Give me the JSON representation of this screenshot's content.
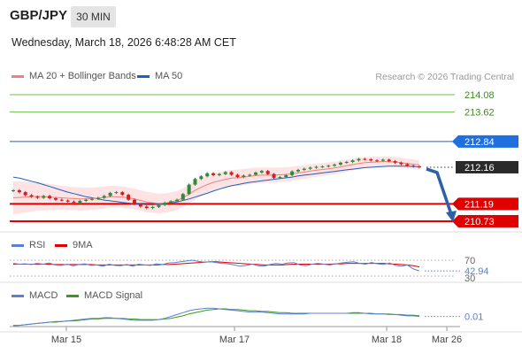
{
  "header": {
    "symbol": "GBP/JPY",
    "timeframe": "30 MIN",
    "datetime": "Wednesday, March 18, 2026 6:48:28 AM CET"
  },
  "legend": {
    "ma20_label": "MA 20 + Bollinger Bands",
    "ma50_label": "MA 50",
    "copyright": "Research © 2026 Trading Central",
    "rsi_label": "RSI",
    "rsi_ma_label": "9MA",
    "macd_label": "MACD",
    "macd_signal_label": "MACD Signal"
  },
  "colors": {
    "resistance": "#6abf4b",
    "pivot": "#1f5fbf",
    "support": "#e00000",
    "ma20": "#f08080",
    "ma50": "#1f5fbf",
    "bollinger_fill": "#fde3e3",
    "candle_up": "#2e8b3a",
    "candle_down": "#d21e1e",
    "arrow": "#2e60a8",
    "rsi": "#5b7fd6",
    "rsi_ma": "#e00000",
    "macd": "#5b7fd6",
    "macd_signal": "#3b9a1e"
  },
  "chart_data": [
    {
      "type": "line",
      "title": "GBP/JPY",
      "x_ticks": [
        "Mar 15",
        "Mar 17",
        "Mar 18",
        "Mar 26"
      ],
      "ylim": [
        210.73,
        214.08
      ],
      "levels": [
        {
          "value": 214.08,
          "label": "214.08",
          "kind": "resistance"
        },
        {
          "value": 213.62,
          "label": "213.62",
          "kind": "resistance"
        },
        {
          "value": 212.84,
          "label": "212.84",
          "kind": "pivot"
        },
        {
          "value": 212.16,
          "label": "212.16",
          "kind": "last"
        },
        {
          "value": 211.19,
          "label": "211.19",
          "kind": "support"
        },
        {
          "value": 210.73,
          "label": "210.73",
          "kind": "support"
        }
      ],
      "series": [
        {
          "name": "Price",
          "values": [
            211.55,
            211.5,
            211.42,
            211.38,
            211.35,
            211.4,
            211.34,
            211.3,
            211.28,
            211.25,
            211.22,
            211.27,
            211.3,
            211.32,
            211.35,
            211.4,
            211.48,
            211.5,
            211.43,
            211.3,
            211.18,
            211.12,
            211.08,
            211.11,
            211.16,
            211.22,
            211.26,
            211.3,
            211.45,
            211.7,
            211.85,
            211.92,
            212.0,
            211.95,
            211.98,
            212.03,
            211.96,
            211.9,
            211.94,
            211.96,
            212.02,
            212.06,
            211.98,
            211.88,
            211.9,
            211.95,
            212.05,
            212.09,
            212.12,
            212.15,
            212.17,
            212.18,
            212.2,
            212.23,
            212.28,
            212.3,
            212.34,
            212.38,
            212.37,
            212.34,
            212.33,
            212.36,
            212.32,
            212.28,
            212.24,
            212.2,
            212.18,
            212.16
          ]
        },
        {
          "name": "MA 20",
          "values": [
            211.35,
            211.36,
            211.37,
            211.38,
            211.39,
            211.38,
            211.37,
            211.36,
            211.35,
            211.34,
            211.33,
            211.32,
            211.32,
            211.33,
            211.34,
            211.36,
            211.38,
            211.38,
            211.37,
            211.35,
            211.32,
            211.28,
            211.24,
            211.22,
            211.2,
            211.21,
            211.24,
            211.28,
            211.35,
            211.45,
            211.55,
            211.63,
            211.7,
            211.76,
            211.8,
            211.84,
            211.87,
            211.88,
            211.9,
            211.92,
            211.94,
            211.95,
            211.95,
            211.95,
            211.96,
            211.97,
            211.99,
            212.01,
            212.03,
            212.06,
            212.08,
            212.1,
            212.12,
            212.14,
            212.17,
            212.2,
            212.23,
            212.26,
            212.28,
            212.29,
            212.3,
            212.31,
            212.31,
            212.3,
            212.28,
            212.26,
            212.24,
            212.22
          ]
        },
        {
          "name": "MA 50",
          "values": [
            211.9,
            211.87,
            211.83,
            211.79,
            211.75,
            211.7,
            211.65,
            211.6,
            211.55,
            211.5,
            211.46,
            211.42,
            211.38,
            211.35,
            211.32,
            211.29,
            211.27,
            211.25,
            211.23,
            211.21,
            211.19,
            211.18,
            211.17,
            211.17,
            211.18,
            211.2,
            211.22,
            211.24,
            211.28,
            211.32,
            211.37,
            211.42,
            211.47,
            211.53,
            211.58,
            211.63,
            211.67,
            211.7,
            211.73,
            211.76,
            211.78,
            211.8,
            211.82,
            211.84,
            211.86,
            211.88,
            211.9,
            211.93,
            211.95,
            211.97,
            211.99,
            212.01,
            212.03,
            212.05,
            212.07,
            212.09,
            212.11,
            212.13,
            212.15,
            212.16,
            212.17,
            212.18,
            212.19,
            212.19,
            212.19,
            212.19,
            212.18,
            212.17
          ]
        }
      ]
    },
    {
      "type": "line",
      "ylim": [
        30,
        70
      ],
      "y_ticks": [
        "70",
        "30"
      ],
      "last_value_label": "42.94",
      "series": [
        {
          "name": "RSI",
          "values": [
            62,
            60,
            61,
            59,
            62,
            60,
            63,
            58,
            57,
            60,
            56,
            59,
            61,
            57,
            58,
            55,
            60,
            57,
            56,
            59,
            55,
            60,
            58,
            57,
            61,
            59,
            63,
            64,
            66,
            68,
            70,
            67,
            65,
            66,
            64,
            62,
            61,
            58,
            55,
            57,
            60,
            56,
            55,
            59,
            62,
            60,
            63,
            64,
            58,
            56,
            60,
            62,
            60,
            58,
            61,
            63,
            65,
            66,
            62,
            60,
            64,
            61,
            59,
            63,
            57,
            55,
            58,
            48,
            43
          ]
        },
        {
          "name": "9MA",
          "values": [
            60,
            60,
            60,
            60,
            60,
            60,
            60,
            59,
            59,
            59,
            59,
            59,
            59,
            59,
            58,
            58,
            58,
            58,
            58,
            58,
            58,
            58,
            58,
            58,
            58,
            59,
            59,
            60,
            61,
            62,
            63,
            64,
            65,
            66,
            66,
            65,
            64,
            63,
            62,
            61,
            60,
            59,
            58,
            58,
            58,
            58,
            59,
            60,
            60,
            60,
            60,
            60,
            60,
            60,
            61,
            61,
            62,
            62,
            62,
            62,
            62,
            62,
            62,
            61,
            60,
            59,
            58,
            56,
            53
          ]
        }
      ]
    },
    {
      "type": "line",
      "ylim": [
        -0.15,
        0.2
      ],
      "last_value_label": "0.01",
      "series": [
        {
          "name": "MACD",
          "values": [
            -0.14,
            -0.13,
            -0.12,
            -0.11,
            -0.1,
            -0.09,
            -0.08,
            -0.07,
            -0.07,
            -0.06,
            -0.05,
            -0.04,
            -0.03,
            -0.02,
            -0.02,
            -0.01,
            -0.01,
            -0.02,
            -0.03,
            -0.04,
            -0.05,
            -0.05,
            -0.05,
            -0.05,
            -0.04,
            -0.02,
            0.01,
            0.04,
            0.07,
            0.1,
            0.12,
            0.13,
            0.14,
            0.14,
            0.13,
            0.12,
            0.11,
            0.1,
            0.09,
            0.08,
            0.08,
            0.08,
            0.07,
            0.06,
            0.05,
            0.05,
            0.05,
            0.05,
            0.05,
            0.06,
            0.06,
            0.06,
            0.06,
            0.06,
            0.06,
            0.06,
            0.07,
            0.07,
            0.06,
            0.05,
            0.05,
            0.05,
            0.04,
            0.04,
            0.03,
            0.02,
            0.02,
            0.01
          ]
        },
        {
          "name": "MACD Signal",
          "values": [
            -0.13,
            -0.13,
            -0.12,
            -0.11,
            -0.1,
            -0.09,
            -0.08,
            -0.08,
            -0.07,
            -0.06,
            -0.06,
            -0.05,
            -0.04,
            -0.03,
            -0.03,
            -0.02,
            -0.02,
            -0.02,
            -0.02,
            -0.03,
            -0.03,
            -0.04,
            -0.04,
            -0.04,
            -0.04,
            -0.03,
            -0.02,
            0.0,
            0.02,
            0.05,
            0.07,
            0.09,
            0.11,
            0.12,
            0.13,
            0.13,
            0.12,
            0.12,
            0.11,
            0.1,
            0.1,
            0.09,
            0.09,
            0.08,
            0.07,
            0.07,
            0.06,
            0.06,
            0.06,
            0.06,
            0.06,
            0.06,
            0.06,
            0.06,
            0.06,
            0.06,
            0.06,
            0.06,
            0.06,
            0.06,
            0.05,
            0.05,
            0.05,
            0.04,
            0.04,
            0.03,
            0.03,
            0.02
          ]
        }
      ]
    }
  ]
}
